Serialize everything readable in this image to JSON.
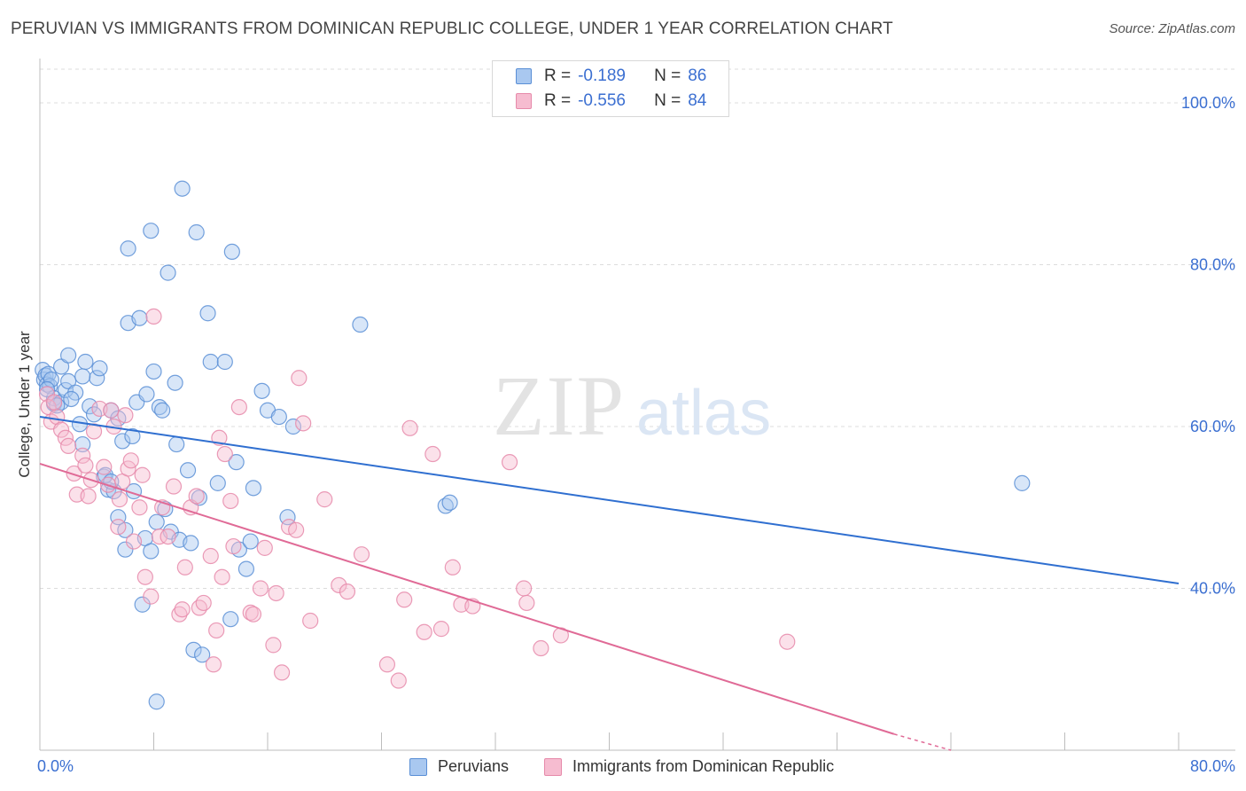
{
  "title": "PERUVIAN VS IMMIGRANTS FROM DOMINICAN REPUBLIC COLLEGE, UNDER 1 YEAR CORRELATION CHART",
  "source": "Source: ZipAtlas.com",
  "watermark": {
    "zip": "ZIP",
    "atlas": "atlas"
  },
  "legend_top": {
    "rows": [
      {
        "r_label": "R =",
        "r_value": "-0.189",
        "n_label": "N =",
        "n_value": "86"
      },
      {
        "r_label": "R =",
        "r_value": "-0.556",
        "n_label": "N =",
        "n_value": "84"
      }
    ]
  },
  "legend_bottom": {
    "series1": "Peruvians",
    "series2": "Immigrants from Dominican Republic"
  },
  "colors": {
    "blue_fill": "#a9c8f0",
    "blue_stroke": "#5a8fd6",
    "blue_line": "#2f6fd0",
    "pink_fill": "#f6bcd0",
    "pink_stroke": "#e68aaa",
    "pink_line": "#e06a96",
    "grid": "#dcdcdc",
    "axis_text": "#3b6fd1"
  },
  "chart_data": {
    "type": "scatter",
    "title": "PERUVIAN VS IMMIGRANTS FROM DOMINICAN REPUBLIC COLLEGE, UNDER 1 YEAR CORRELATION CHART",
    "xlabel": "",
    "ylabel": "College, Under 1 year",
    "xlim": [
      0,
      80
    ],
    "ylim": [
      20,
      104
    ],
    "x_tick_labels": [
      {
        "value": 0,
        "label": "0.0%"
      },
      {
        "value": 80,
        "label": "80.0%"
      }
    ],
    "y_tick_labels": [
      {
        "value": 100,
        "label": "100.0%"
      },
      {
        "value": 80,
        "label": "80.0%"
      },
      {
        "value": 60,
        "label": "60.0%"
      },
      {
        "value": 40,
        "label": "40.0%"
      }
    ],
    "series": [
      {
        "name": "Peruvians",
        "R": -0.189,
        "N": 86,
        "trend": {
          "x": [
            0,
            80
          ],
          "y": [
            61.2,
            40.6
          ]
        },
        "points": [
          [
            0.2,
            67.0
          ],
          [
            0.3,
            65.8
          ],
          [
            0.4,
            66.3
          ],
          [
            0.5,
            65.2
          ],
          [
            0.6,
            66.5
          ],
          [
            0.7,
            65.0
          ],
          [
            0.8,
            65.8
          ],
          [
            1.0,
            62.8
          ],
          [
            1.0,
            63.5
          ],
          [
            1.5,
            63.0
          ],
          [
            1.5,
            67.4
          ],
          [
            1.8,
            64.5
          ],
          [
            2.0,
            68.8
          ],
          [
            2.0,
            65.6
          ],
          [
            2.5,
            64.2
          ],
          [
            2.8,
            60.3
          ],
          [
            3.0,
            57.8
          ],
          [
            3.2,
            68.0
          ],
          [
            3.5,
            62.5
          ],
          [
            3.8,
            61.5
          ],
          [
            4.0,
            66.0
          ],
          [
            4.2,
            67.2
          ],
          [
            4.5,
            53.8
          ],
          [
            4.8,
            52.2
          ],
          [
            5.0,
            62.0
          ],
          [
            5.2,
            52.0
          ],
          [
            5.5,
            61.0
          ],
          [
            5.5,
            48.8
          ],
          [
            5.8,
            58.2
          ],
          [
            6.0,
            47.2
          ],
          [
            6.0,
            44.8
          ],
          [
            6.2,
            72.8
          ],
          [
            6.2,
            82.0
          ],
          [
            6.5,
            58.8
          ],
          [
            6.8,
            63.0
          ],
          [
            7.0,
            73.4
          ],
          [
            7.2,
            38.0
          ],
          [
            7.4,
            46.2
          ],
          [
            7.5,
            64.0
          ],
          [
            7.8,
            84.2
          ],
          [
            7.8,
            44.6
          ],
          [
            8.0,
            66.8
          ],
          [
            8.2,
            48.2
          ],
          [
            8.4,
            62.4
          ],
          [
            8.6,
            62.0
          ],
          [
            8.8,
            49.8
          ],
          [
            9.0,
            79.0
          ],
          [
            9.2,
            47.0
          ],
          [
            9.5,
            65.4
          ],
          [
            9.6,
            57.8
          ],
          [
            9.8,
            46.0
          ],
          [
            10.0,
            89.4
          ],
          [
            10.4,
            54.6
          ],
          [
            10.6,
            45.6
          ],
          [
            10.8,
            32.4
          ],
          [
            11.0,
            84.0
          ],
          [
            11.2,
            51.2
          ],
          [
            11.4,
            31.8
          ],
          [
            11.8,
            74.0
          ],
          [
            12.0,
            68.0
          ],
          [
            12.5,
            53.0
          ],
          [
            13.0,
            68.0
          ],
          [
            13.4,
            36.2
          ],
          [
            13.5,
            81.6
          ],
          [
            13.8,
            55.6
          ],
          [
            14.0,
            44.8
          ],
          [
            14.5,
            42.4
          ],
          [
            14.8,
            45.8
          ],
          [
            15.0,
            52.4
          ],
          [
            15.6,
            64.4
          ],
          [
            16.0,
            62.0
          ],
          [
            16.8,
            61.2
          ],
          [
            17.4,
            48.8
          ],
          [
            17.8,
            60.0
          ],
          [
            22.5,
            72.6
          ],
          [
            28.5,
            50.2
          ],
          [
            28.8,
            50.6
          ],
          [
            69.0,
            53.0
          ],
          [
            8.2,
            26.0
          ],
          [
            0.5,
            64.6
          ],
          [
            1.2,
            62.6
          ],
          [
            2.2,
            63.4
          ],
          [
            3.0,
            66.2
          ],
          [
            4.6,
            54.0
          ],
          [
            5.0,
            53.2
          ],
          [
            6.6,
            52.0
          ]
        ]
      },
      {
        "name": "Immigrants from Dominican Republic",
        "R": -0.556,
        "N": 84,
        "trend": {
          "x": [
            0,
            60
          ],
          "y": [
            55.4,
            22.0
          ],
          "dash_to": [
            64,
            20
          ]
        },
        "points": [
          [
            0.5,
            64.0
          ],
          [
            0.6,
            62.4
          ],
          [
            0.8,
            60.6
          ],
          [
            1.2,
            61.2
          ],
          [
            1.5,
            59.6
          ],
          [
            1.8,
            58.6
          ],
          [
            2.0,
            57.6
          ],
          [
            2.4,
            54.2
          ],
          [
            2.6,
            51.6
          ],
          [
            3.0,
            56.4
          ],
          [
            3.2,
            55.2
          ],
          [
            3.4,
            51.4
          ],
          [
            3.6,
            53.4
          ],
          [
            3.8,
            59.4
          ],
          [
            4.2,
            62.2
          ],
          [
            4.5,
            55.0
          ],
          [
            4.8,
            52.8
          ],
          [
            5.0,
            62.0
          ],
          [
            5.2,
            60.0
          ],
          [
            5.5,
            47.6
          ],
          [
            5.6,
            51.0
          ],
          [
            5.8,
            53.2
          ],
          [
            6.0,
            61.4
          ],
          [
            6.2,
            54.8
          ],
          [
            6.4,
            55.8
          ],
          [
            6.6,
            45.8
          ],
          [
            7.0,
            50.0
          ],
          [
            7.2,
            54.0
          ],
          [
            7.4,
            41.4
          ],
          [
            7.8,
            39.0
          ],
          [
            8.0,
            73.6
          ],
          [
            8.4,
            46.4
          ],
          [
            8.6,
            50.0
          ],
          [
            9.0,
            46.4
          ],
          [
            9.4,
            52.6
          ],
          [
            9.8,
            36.8
          ],
          [
            10.0,
            37.4
          ],
          [
            10.2,
            42.6
          ],
          [
            10.6,
            50.0
          ],
          [
            11.0,
            51.4
          ],
          [
            11.2,
            37.6
          ],
          [
            11.5,
            38.2
          ],
          [
            12.0,
            44.0
          ],
          [
            12.2,
            30.6
          ],
          [
            12.4,
            34.8
          ],
          [
            12.6,
            58.6
          ],
          [
            12.8,
            41.4
          ],
          [
            13.0,
            56.6
          ],
          [
            13.4,
            50.8
          ],
          [
            13.6,
            45.2
          ],
          [
            14.0,
            62.4
          ],
          [
            14.8,
            37.0
          ],
          [
            15.0,
            36.8
          ],
          [
            15.5,
            40.0
          ],
          [
            15.8,
            45.0
          ],
          [
            16.4,
            33.0
          ],
          [
            16.6,
            39.4
          ],
          [
            17.0,
            29.6
          ],
          [
            17.5,
            47.6
          ],
          [
            18.0,
            47.2
          ],
          [
            18.2,
            66.0
          ],
          [
            18.5,
            60.4
          ],
          [
            19.0,
            36.0
          ],
          [
            20.0,
            51.0
          ],
          [
            21.0,
            40.4
          ],
          [
            21.6,
            39.6
          ],
          [
            22.6,
            44.2
          ],
          [
            24.4,
            30.6
          ],
          [
            25.2,
            28.6
          ],
          [
            25.6,
            38.6
          ],
          [
            26.0,
            59.8
          ],
          [
            27.0,
            34.6
          ],
          [
            27.6,
            56.6
          ],
          [
            28.2,
            35.0
          ],
          [
            29.0,
            42.6
          ],
          [
            29.6,
            38.0
          ],
          [
            30.4,
            37.8
          ],
          [
            33.0,
            55.6
          ],
          [
            34.0,
            40.0
          ],
          [
            34.2,
            38.2
          ],
          [
            35.2,
            32.6
          ],
          [
            36.6,
            34.2
          ],
          [
            52.5,
            33.4
          ],
          [
            1.0,
            63.0
          ]
        ]
      }
    ]
  }
}
